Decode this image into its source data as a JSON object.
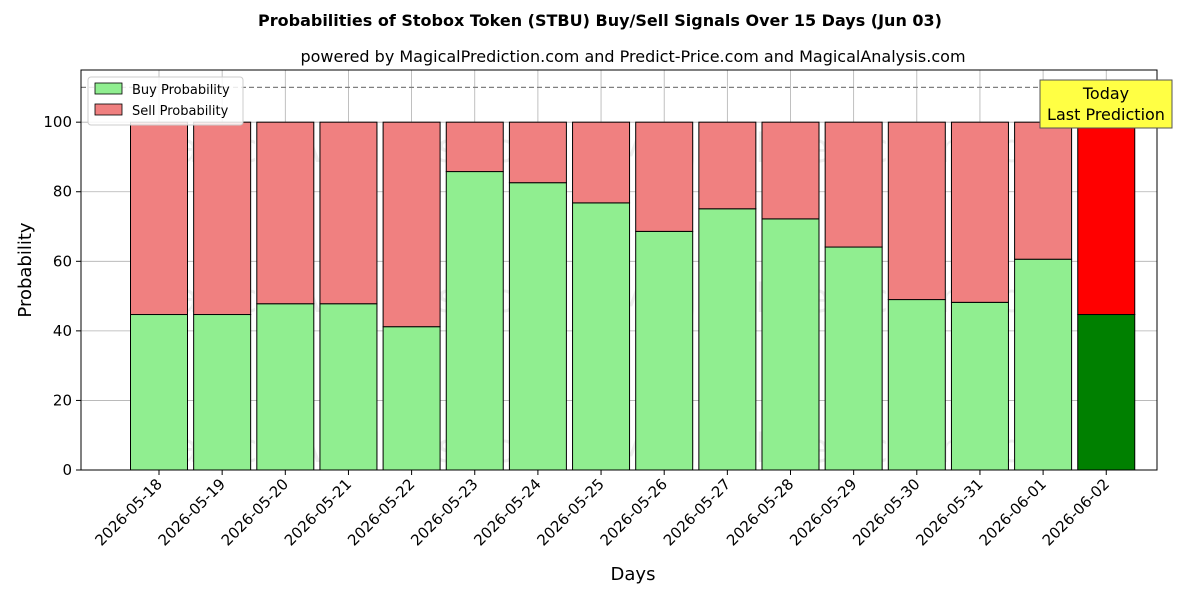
{
  "chart_data": {
    "type": "bar",
    "stacked": true,
    "title": "Probabilities of Stobox Token (STBU) Buy/Sell Signals Over 15 Days (Jun 03)",
    "subtitle": "powered by MagicalPrediction.com and Predict-Price.com and MagicalAnalysis.com",
    "xlabel": "Days",
    "ylabel": "Probability",
    "ylim": [
      0,
      115
    ],
    "yticks": [
      0,
      20,
      40,
      60,
      80,
      100
    ],
    "grid": true,
    "legend_position": "top-left",
    "reference_line": 110,
    "categories": [
      "2026-05-18",
      "2026-05-19",
      "2026-05-20",
      "2026-05-21",
      "2026-05-22",
      "2026-05-23",
      "2026-05-24",
      "2026-05-25",
      "2026-05-26",
      "2026-05-27",
      "2026-05-28",
      "2026-05-29",
      "2026-05-30",
      "2026-05-31",
      "2026-06-01",
      "2026-06-02"
    ],
    "series": [
      {
        "name": "Buy Probability",
        "color": "#90ee90",
        "highlight_color": "#008000",
        "values": [
          44.7,
          44.7,
          47.8,
          47.8,
          41.2,
          85.8,
          82.6,
          76.8,
          68.6,
          75.1,
          72.2,
          64.1,
          49.0,
          48.2,
          60.6,
          44.7
        ]
      },
      {
        "name": "Sell Probability",
        "color": "#f08080",
        "highlight_color": "#ff0000",
        "values": [
          55.3,
          55.3,
          52.2,
          52.2,
          58.8,
          14.2,
          17.4,
          23.2,
          31.4,
          24.9,
          27.8,
          35.9,
          51.0,
          51.8,
          39.4,
          55.3
        ]
      }
    ],
    "annotation": {
      "line1": "Today",
      "line2": "Last Prediction",
      "color": "#ffff44"
    },
    "watermarks": [
      "MagicalAnalysis.com",
      "MagicalPrediction.com"
    ]
  }
}
